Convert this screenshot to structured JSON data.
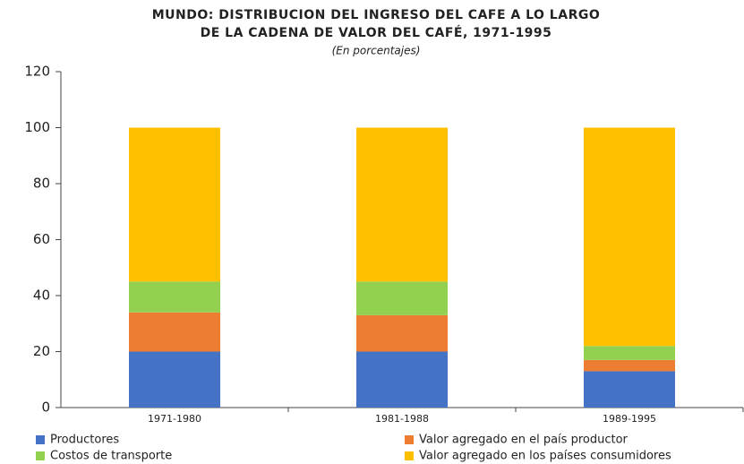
{
  "chart_data": {
    "type": "stacked_bar",
    "title": [
      "MUNDO: DISTRIBUCION DEL INGRESO DEL CAFE A LO LARGO",
      "DE LA CADENA DE VALOR DEL CAFÉ, 1971-1995"
    ],
    "subtitle": "(En porcentajes)",
    "categories": [
      "1971-1980",
      "1981-1988",
      "1989-1995"
    ],
    "series": [
      {
        "name": "Productores",
        "color": "#4472c4",
        "values": [
          20,
          20,
          13
        ]
      },
      {
        "name": "Valor agregado en el país productor",
        "color": "#ed7d31",
        "values": [
          14,
          13,
          4
        ]
      },
      {
        "name": "Costos de transporte",
        "color": "#92d050",
        "values": [
          11,
          12,
          5
        ]
      },
      {
        "name": "Valor agregado en los países consumidores",
        "color": "#ffc000",
        "values": [
          55,
          55,
          78
        ]
      }
    ],
    "ylim": [
      0,
      120
    ],
    "yticks": [
      0,
      20,
      40,
      60,
      80,
      100,
      120
    ],
    "grid": false,
    "legend": "bottom"
  }
}
